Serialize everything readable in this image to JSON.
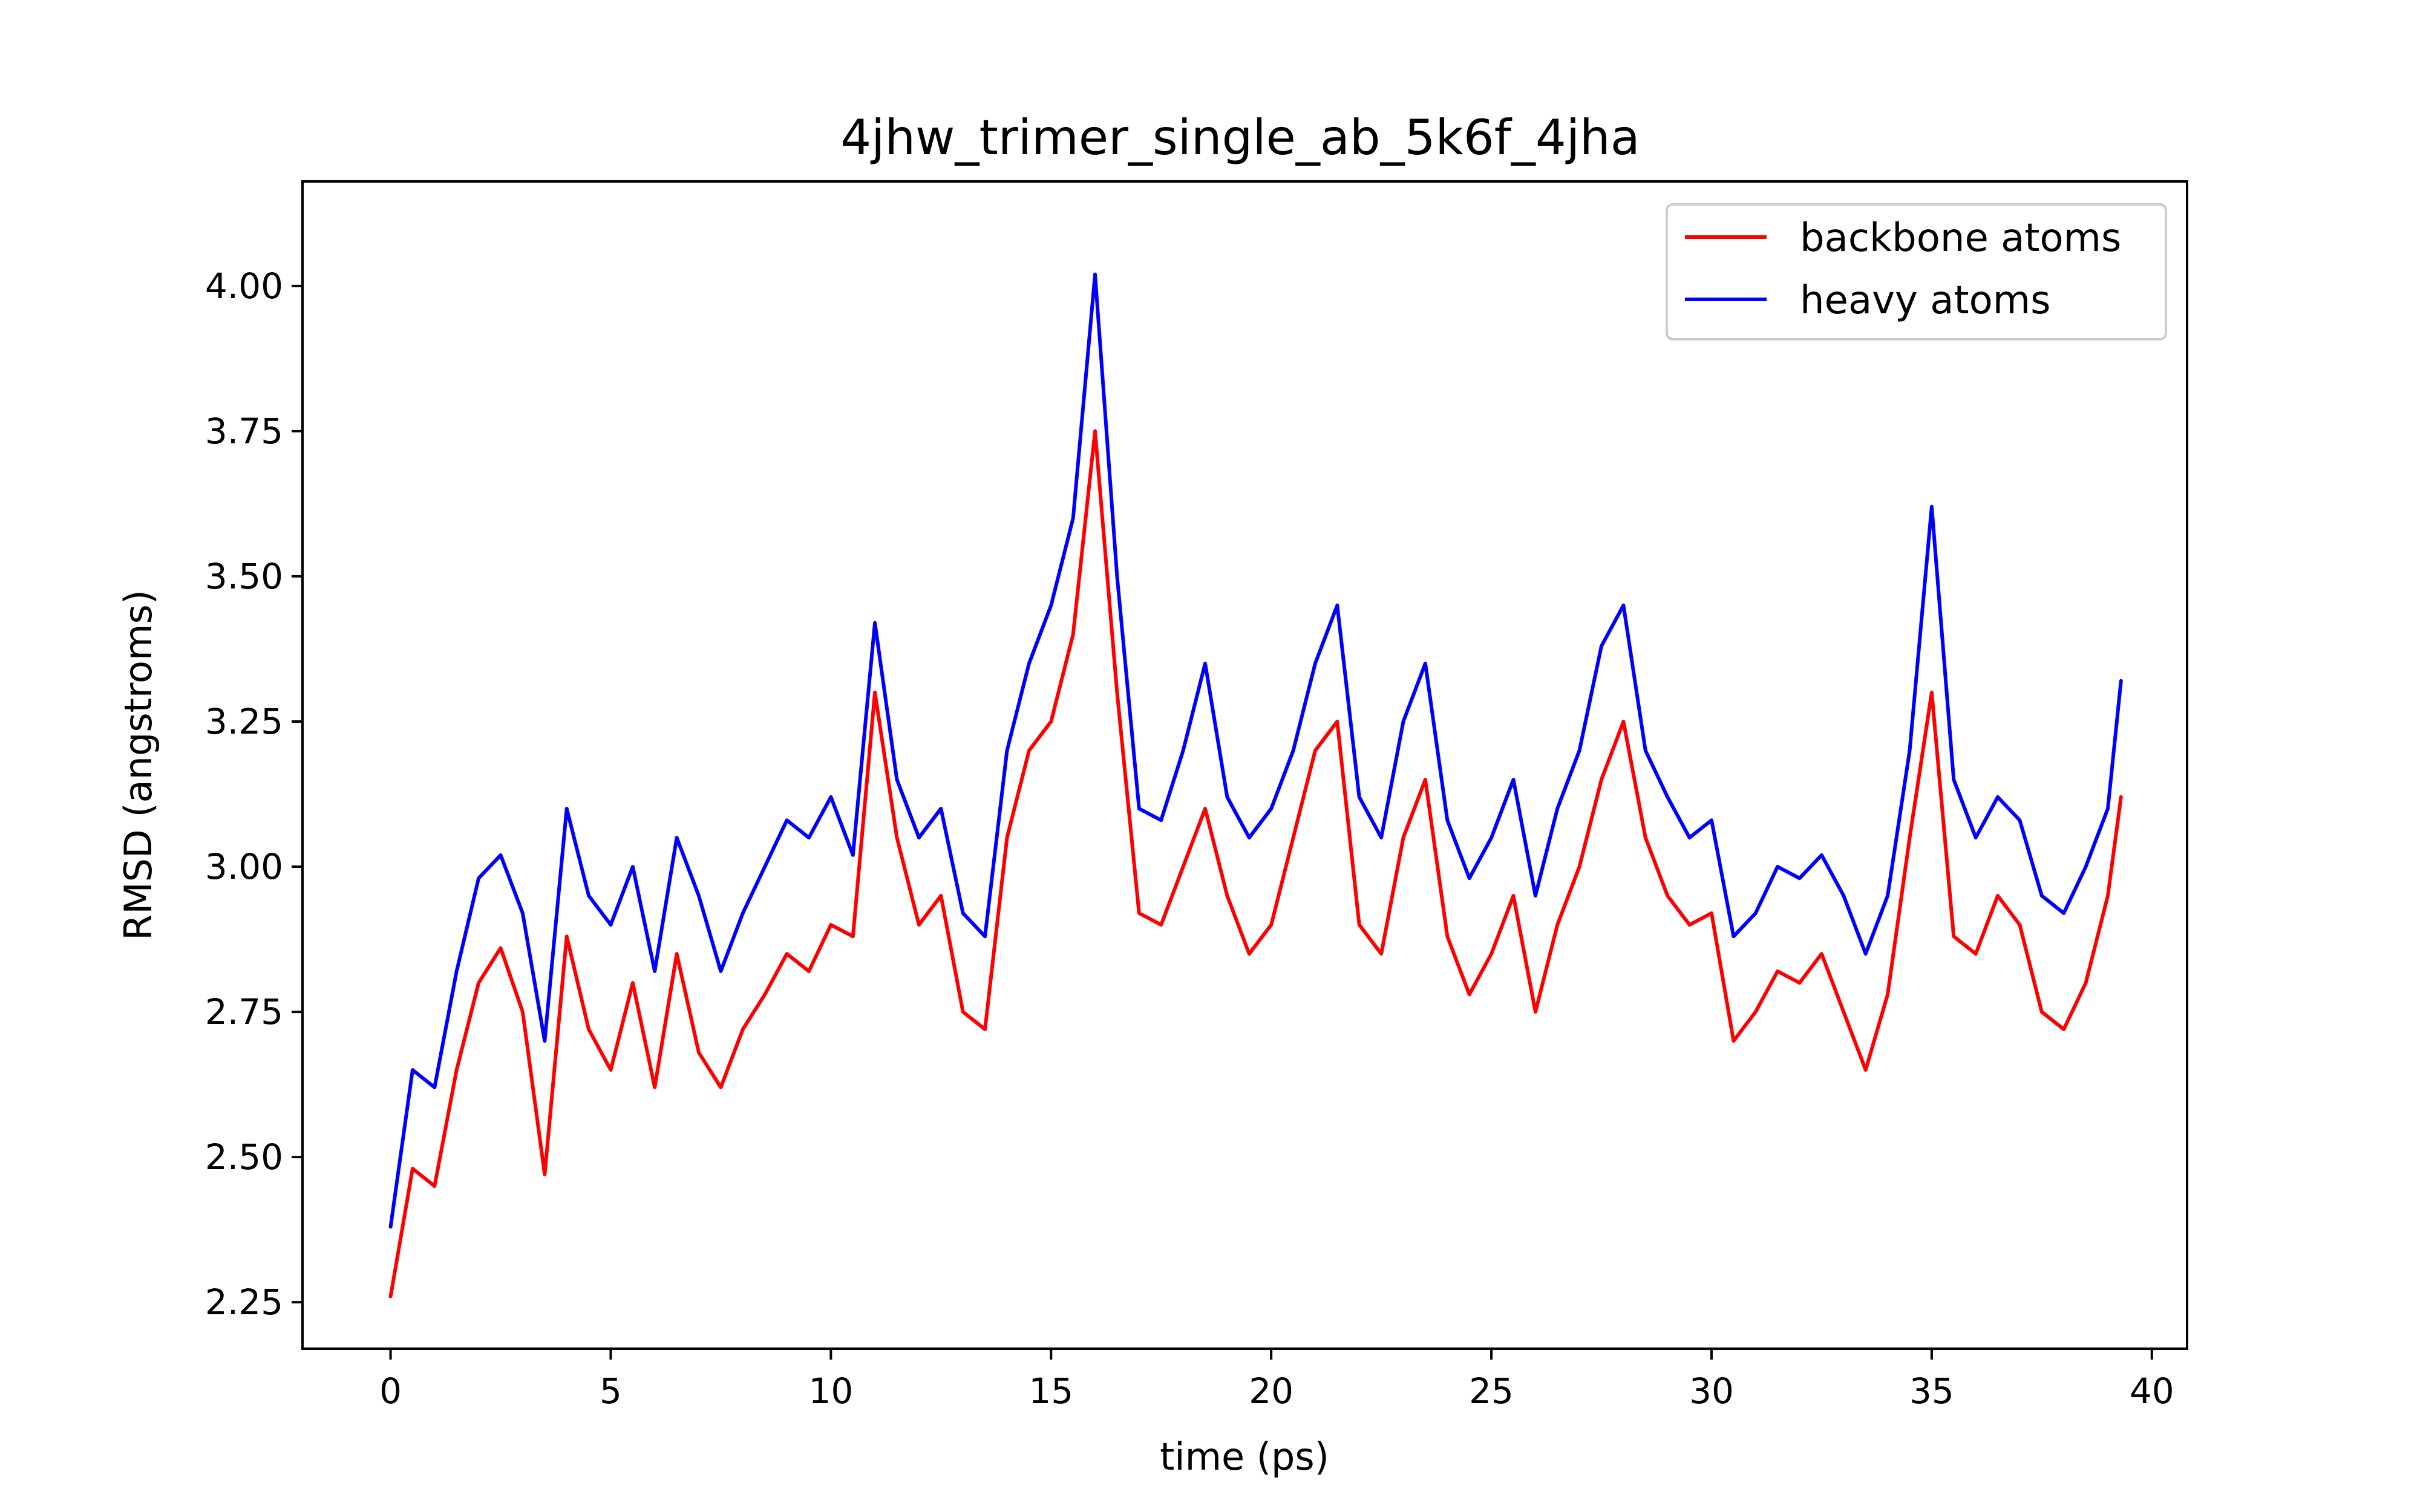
{
  "chart_data": {
    "type": "line",
    "title": "4jhw_trimer_single_ab_5k6f_4jha",
    "xlabel": "time (ps)",
    "ylabel": "RMSD (angstroms)",
    "xlim": [
      -2,
      40.8
    ],
    "ylim": [
      2.17,
      4.18
    ],
    "xticks": [
      0,
      5,
      10,
      15,
      20,
      25,
      30,
      35,
      40
    ],
    "xtick_labels": [
      "0",
      "5",
      "10",
      "15",
      "20",
      "25",
      "30",
      "35",
      "40"
    ],
    "yticks": [
      2.25,
      2.5,
      2.75,
      3.0,
      3.25,
      3.5,
      3.75,
      4.0
    ],
    "ytick_labels": [
      "2.25",
      "2.50",
      "2.75",
      "3.00",
      "3.25",
      "3.50",
      "3.75",
      "4.00"
    ],
    "legend_position": "top-right",
    "x": [
      0,
      0.5,
      1,
      1.5,
      2,
      2.5,
      3,
      3.5,
      4,
      4.5,
      5,
      5.5,
      6,
      6.5,
      7,
      7.5,
      8,
      8.5,
      9,
      9.5,
      10,
      10.5,
      11,
      11.5,
      12,
      12.5,
      13,
      13.5,
      14,
      14.5,
      15,
      15.5,
      16,
      16.5,
      17,
      17.5,
      18,
      18.5,
      19,
      19.5,
      20,
      20.5,
      21,
      21.5,
      22,
      22.5,
      23,
      23.5,
      24,
      24.5,
      25,
      25.5,
      26,
      26.5,
      27,
      27.5,
      28,
      28.5,
      29,
      29.5,
      30,
      30.5,
      31,
      31.5,
      32,
      32.5,
      33,
      33.5,
      34,
      34.5,
      35,
      35.5,
      36,
      36.5,
      37,
      37.5,
      38,
      38.5,
      39,
      39.3
    ],
    "series": [
      {
        "name": "backbone atoms",
        "color": "#ff0000",
        "values": [
          2.26,
          2.48,
          2.45,
          2.65,
          2.8,
          2.86,
          2.75,
          2.47,
          2.88,
          2.72,
          2.65,
          2.8,
          2.62,
          2.85,
          2.68,
          2.62,
          2.72,
          2.78,
          2.85,
          2.82,
          2.9,
          2.88,
          3.3,
          3.05,
          2.9,
          2.95,
          2.75,
          2.72,
          3.05,
          3.2,
          3.25,
          3.4,
          3.75,
          3.3,
          2.92,
          2.9,
          3.0,
          3.1,
          2.95,
          2.85,
          2.9,
          3.05,
          3.2,
          3.25,
          2.9,
          2.85,
          3.05,
          3.15,
          2.88,
          2.78,
          2.85,
          2.95,
          2.75,
          2.9,
          3.0,
          3.15,
          3.25,
          3.05,
          2.95,
          2.9,
          2.92,
          2.7,
          2.75,
          2.82,
          2.8,
          2.85,
          2.75,
          2.65,
          2.78,
          3.05,
          3.3,
          2.88,
          2.85,
          2.95,
          2.9,
          2.75,
          2.72,
          2.8,
          2.95,
          3.12
        ]
      },
      {
        "name": "heavy atoms",
        "color": "#0000ff",
        "values": [
          2.38,
          2.65,
          2.62,
          2.82,
          2.98,
          3.02,
          2.92,
          2.7,
          3.1,
          2.95,
          2.9,
          3.0,
          2.82,
          3.05,
          2.95,
          2.82,
          2.92,
          3.0,
          3.08,
          3.05,
          3.12,
          3.02,
          3.42,
          3.15,
          3.05,
          3.1,
          2.92,
          2.88,
          3.2,
          3.35,
          3.45,
          3.6,
          4.02,
          3.5,
          3.1,
          3.08,
          3.2,
          3.35,
          3.12,
          3.05,
          3.1,
          3.2,
          3.35,
          3.45,
          3.12,
          3.05,
          3.25,
          3.35,
          3.08,
          2.98,
          3.05,
          3.15,
          2.95,
          3.1,
          3.2,
          3.38,
          3.45,
          3.2,
          3.12,
          3.05,
          3.08,
          2.88,
          2.92,
          3.0,
          2.98,
          3.02,
          2.95,
          2.85,
          2.95,
          3.2,
          3.62,
          3.15,
          3.05,
          3.12,
          3.08,
          2.95,
          2.92,
          3.0,
          3.1,
          3.32
        ]
      }
    ]
  }
}
